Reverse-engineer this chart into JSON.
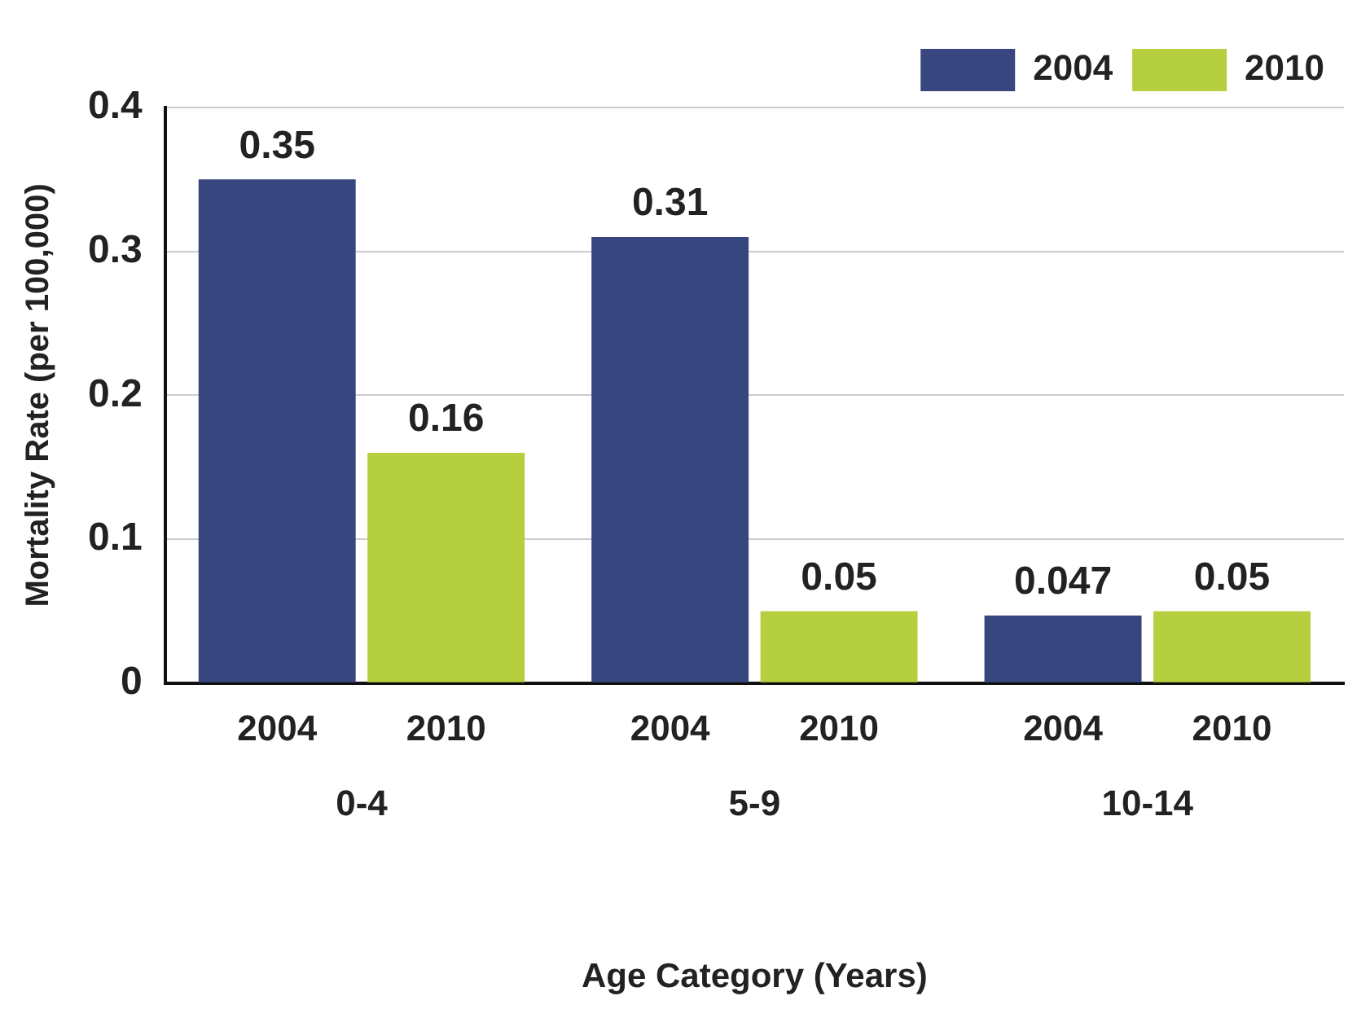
{
  "chart_data": {
    "type": "bar",
    "xlabel": "Age Category (Years)",
    "ylabel": "Mortality Rate (per 100,000)",
    "categories": [
      "0-4",
      "5-9",
      "10-14"
    ],
    "series": [
      {
        "name": "2004",
        "color": "#37467f",
        "values": [
          0.35,
          0.31,
          0.047
        ]
      },
      {
        "name": "2010",
        "color": "#b5cf3f",
        "values": [
          0.16,
          0.05,
          0.05
        ]
      }
    ],
    "ylim": [
      0,
      0.4
    ],
    "yticks": [
      0,
      0.1,
      0.2,
      0.3,
      0.4
    ],
    "grid": "y",
    "legend": "top right",
    "data_labels": true
  }
}
